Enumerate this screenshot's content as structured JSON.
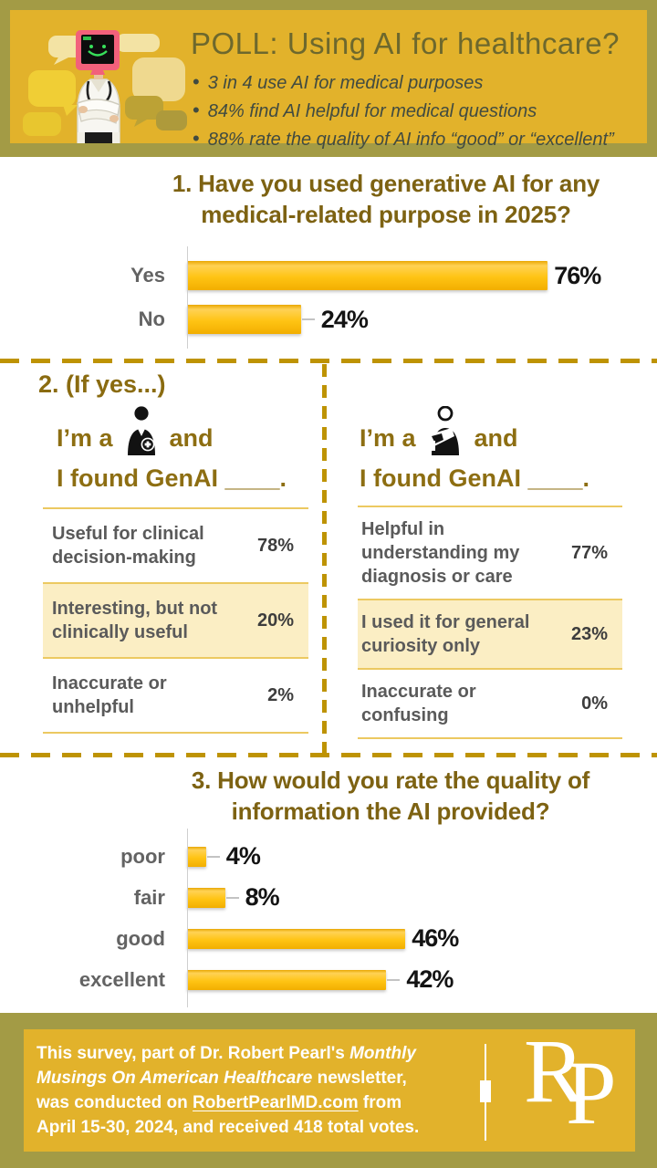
{
  "header": {
    "title": "POLL: Using AI for healthcare?",
    "bullets": [
      "3 in 4 use AI for medical purposes",
      "84% find AI helpful for medical questions",
      "88% rate the quality of AI info “good” or “excellent”"
    ]
  },
  "q2": {
    "heading": "2. (If yes...)",
    "doctor": {
      "intro_pre": "I’m a",
      "intro_mid": "and",
      "intro_line2": "I found GenAI ____.",
      "icon": "doctor-icon"
    },
    "patient": {
      "intro_pre": "I’m a",
      "intro_mid": "and",
      "intro_line2": "I found GenAI ____.",
      "icon": "patient-icon"
    }
  },
  "chart_data": [
    {
      "id": "q1",
      "type": "bar",
      "orientation": "horizontal",
      "title": "1. Have you used generative AI for any medical-related purpose in 2025?",
      "title_lines": [
        "1. Have you used generative AI for any",
        "medical-related purpose in 2025?"
      ],
      "categories": [
        "Yes",
        "No"
      ],
      "values": [
        76,
        24
      ],
      "value_labels": [
        "76%",
        "24%"
      ],
      "unit": "%",
      "xlim": [
        0,
        100
      ],
      "grid": false,
      "bar_color": "#FFC414"
    },
    {
      "id": "q2-doctor",
      "type": "table",
      "title": "I’m a doctor and I found GenAI ____.",
      "rows": [
        {
          "label": "Useful for clinical decision-making",
          "value": "78%",
          "highlighted": false
        },
        {
          "label": "Interesting, but not clinically useful",
          "value": "20%",
          "highlighted": true
        },
        {
          "label": "Inaccurate or unhelpful",
          "value": "2%",
          "highlighted": false
        }
      ]
    },
    {
      "id": "q2-patient",
      "type": "table",
      "title": "I’m a patient and I found GenAI ____.",
      "rows": [
        {
          "label": "Helpful in understanding my diagnosis or care",
          "value": "77%",
          "highlighted": false
        },
        {
          "label": "I used it for general curiosity only",
          "value": "23%",
          "highlighted": true
        },
        {
          "label": "Inaccurate or confusing",
          "value": "0%",
          "highlighted": false
        }
      ]
    },
    {
      "id": "q3",
      "type": "bar",
      "orientation": "horizontal",
      "title": "3. How would you rate the quality of information the AI provided?",
      "title_lines": [
        "3. How would you rate the quality of",
        "information the AI provided?"
      ],
      "categories": [
        "poor",
        "fair",
        "good",
        "excellent"
      ],
      "values": [
        4,
        8,
        46,
        42
      ],
      "value_labels": [
        "4%",
        "8%",
        "46%",
        "42%"
      ],
      "unit": "%",
      "xlim": [
        0,
        100
      ],
      "grid": false,
      "bar_color": "#FFC414"
    }
  ],
  "footer": {
    "lines": [
      {
        "segments": [
          {
            "text": "This survey, part of Dr. Robert Pearl's ",
            "style": "normal"
          },
          {
            "text": "Monthly",
            "style": "italic"
          }
        ]
      },
      {
        "segments": [
          {
            "text": "Musings On American Healthcare",
            "style": "italic"
          },
          {
            "text": " newsletter,",
            "style": "normal"
          }
        ]
      },
      {
        "segments": [
          {
            "text": "was conducted on ",
            "style": "normal"
          },
          {
            "text": "RobertPearlMD.com",
            "style": "link"
          },
          {
            "text": " from",
            "style": "normal"
          }
        ]
      },
      {
        "segments": [
          {
            "text": "April 15-30, 2024, and received 418 total votes.",
            "style": "normal"
          }
        ]
      }
    ],
    "logo_r": "R",
    "logo_p": "P"
  },
  "colors": {
    "olive_frame": "#A39B45",
    "gold_band": "#E2B22B",
    "dash": "#BE9303",
    "bar": "#FFC414",
    "highlight_row": "#FBEEC4",
    "row_line": "#ECC961",
    "title_text": "#7D6212",
    "gold_text": "#8D6E12",
    "footer_text": "#FFFFFF"
  }
}
